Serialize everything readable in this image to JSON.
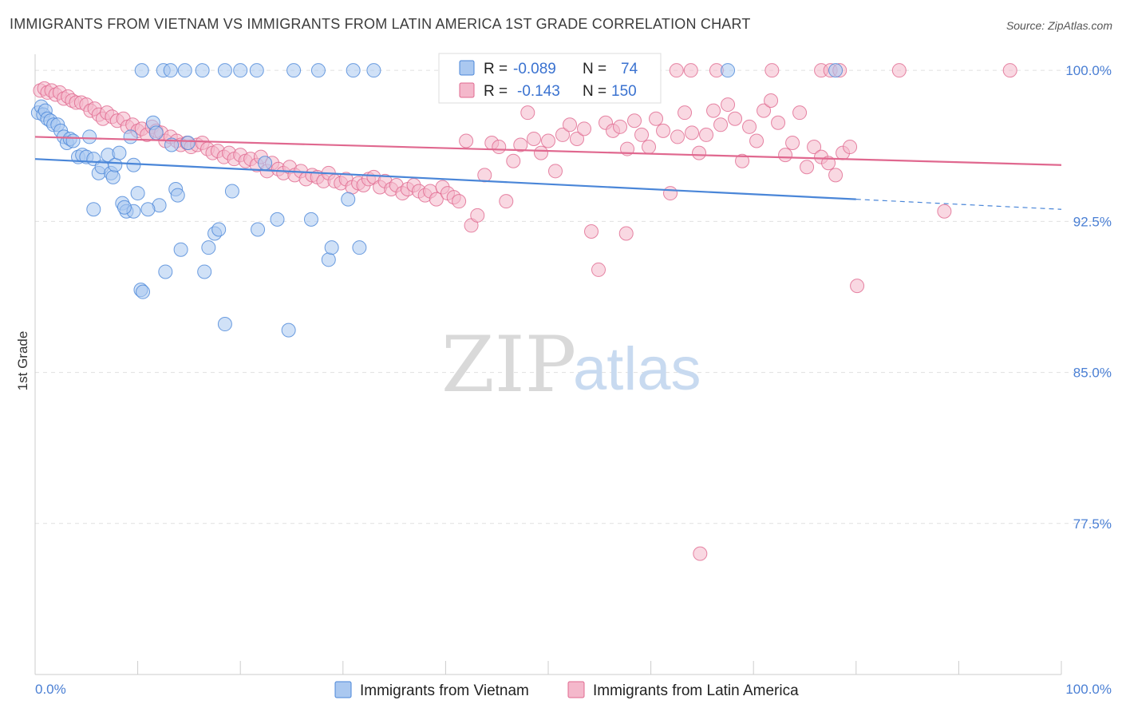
{
  "title": "IMMIGRANTS FROM VIETNAM VS IMMIGRANTS FROM LATIN AMERICA 1ST GRADE CORRELATION CHART",
  "source": "Source: ZipAtlas.com",
  "watermark": {
    "zip": "ZIP",
    "atlas": "atlas"
  },
  "colors": {
    "blue": "#4a86d8",
    "blue_fill": "#aac8f0",
    "pink": "#e0688f",
    "pink_fill": "#f4b8cb",
    "tick_label": "#4a7fd4"
  },
  "legend": {
    "rows": [
      {
        "r_label": "R =",
        "r_value": "-0.089",
        "n_label": "N =",
        "n_value": "74"
      },
      {
        "r_label": "R =",
        "r_value": "-0.143",
        "n_label": "N =",
        "n_value": "150"
      }
    ]
  },
  "bottom_legend": [
    "Immigrants from Vietnam",
    "Immigrants from Latin America"
  ],
  "chart_data": {
    "type": "scatter",
    "title": "IMMIGRANTS FROM VIETNAM VS IMMIGRANTS FROM LATIN AMERICA 1ST GRADE CORRELATION CHART",
    "xlabel": "",
    "ylabel": "1st Grade",
    "xlim": [
      0,
      100
    ],
    "ylim": [
      70,
      100.8
    ],
    "x_tick_labels": [
      "0.0%",
      "100.0%"
    ],
    "y_ticks": [
      100.0,
      92.5,
      85.0,
      77.5
    ],
    "y_tick_labels": [
      "100.0%",
      "92.5%",
      "85.0%",
      "77.5%"
    ],
    "grid": true,
    "series": [
      {
        "name": "Immigrants from Vietnam",
        "r": -0.089,
        "n": 74,
        "trend": {
          "x0": 0,
          "y0": 95.6,
          "x1": 80,
          "y1": 93.6,
          "dash_x1": 100,
          "dash_y1": 93.1
        },
        "points": [
          [
            0.3,
            97.9
          ],
          [
            0.6,
            98.2
          ],
          [
            0.8,
            97.8
          ],
          [
            1.0,
            98.0
          ],
          [
            1.2,
            97.6
          ],
          [
            1.5,
            97.5
          ],
          [
            1.8,
            97.3
          ],
          [
            2.2,
            97.3
          ],
          [
            2.5,
            97.0
          ],
          [
            2.8,
            96.7
          ],
          [
            3.1,
            96.4
          ],
          [
            3.4,
            96.6
          ],
          [
            3.7,
            96.5
          ],
          [
            4.2,
            95.7
          ],
          [
            4.6,
            95.8
          ],
          [
            5.0,
            95.7
          ],
          [
            5.3,
            96.7
          ],
          [
            5.7,
            95.6
          ],
          [
            6.2,
            94.9
          ],
          [
            6.5,
            95.2
          ],
          [
            7.1,
            95.8
          ],
          [
            7.4,
            94.9
          ],
          [
            7.6,
            94.7
          ],
          [
            7.8,
            95.3
          ],
          [
            8.2,
            95.9
          ],
          [
            8.5,
            93.4
          ],
          [
            8.9,
            93.0
          ],
          [
            9.3,
            96.7
          ],
          [
            9.6,
            93.0
          ],
          [
            10.0,
            93.9
          ],
          [
            10.3,
            89.1
          ],
          [
            10.5,
            89.0
          ],
          [
            11.5,
            97.4
          ],
          [
            11.8,
            96.9
          ],
          [
            12.1,
            93.3
          ],
          [
            12.7,
            90.0
          ],
          [
            13.3,
            96.3
          ],
          [
            13.7,
            94.1
          ],
          [
            13.9,
            93.8
          ],
          [
            14.2,
            91.1
          ],
          [
            14.9,
            96.4
          ],
          [
            16.5,
            90.0
          ],
          [
            16.9,
            91.2
          ],
          [
            17.5,
            91.9
          ],
          [
            17.9,
            92.1
          ],
          [
            18.5,
            87.4
          ],
          [
            19.2,
            94.0
          ],
          [
            21.7,
            92.1
          ],
          [
            22.4,
            95.4
          ],
          [
            23.6,
            92.6
          ],
          [
            24.7,
            87.1
          ],
          [
            26.9,
            92.6
          ],
          [
            28.6,
            90.6
          ],
          [
            28.9,
            91.2
          ],
          [
            30.5,
            93.6
          ],
          [
            31.6,
            91.2
          ],
          [
            5.7,
            93.1
          ],
          [
            8.7,
            93.2
          ],
          [
            10.4,
            100.0
          ],
          [
            12.5,
            100.0
          ],
          [
            13.2,
            100.0
          ],
          [
            14.6,
            100.0
          ],
          [
            16.3,
            100.0
          ],
          [
            18.5,
            100.0
          ],
          [
            20.0,
            100.0
          ],
          [
            21.6,
            100.0
          ],
          [
            25.2,
            100.0
          ],
          [
            27.6,
            100.0
          ],
          [
            31.0,
            100.0
          ],
          [
            33.0,
            100.0
          ],
          [
            67.5,
            100.0
          ],
          [
            78.0,
            100.0
          ],
          [
            9.6,
            95.3
          ],
          [
            11.0,
            93.1
          ]
        ]
      },
      {
        "name": "Immigrants from Latin America",
        "r": -0.143,
        "n": 150,
        "trend": {
          "x0": 0,
          "y0": 96.7,
          "x1": 100,
          "y1": 95.3
        },
        "points": [
          [
            0.5,
            99.0
          ],
          [
            0.9,
            99.1
          ],
          [
            1.2,
            98.9
          ],
          [
            1.6,
            99.0
          ],
          [
            2.0,
            98.8
          ],
          [
            2.4,
            98.9
          ],
          [
            2.8,
            98.6
          ],
          [
            3.2,
            98.7
          ],
          [
            3.6,
            98.5
          ],
          [
            4.0,
            98.4
          ],
          [
            4.5,
            98.4
          ],
          [
            5.0,
            98.3
          ],
          [
            5.4,
            98.0
          ],
          [
            5.8,
            98.1
          ],
          [
            6.2,
            97.8
          ],
          [
            6.6,
            97.6
          ],
          [
            7.0,
            97.9
          ],
          [
            7.5,
            97.7
          ],
          [
            8.0,
            97.5
          ],
          [
            8.6,
            97.6
          ],
          [
            9.0,
            97.2
          ],
          [
            9.5,
            97.3
          ],
          [
            10.0,
            97.0
          ],
          [
            10.4,
            97.1
          ],
          [
            10.9,
            96.8
          ],
          [
            11.4,
            97.2
          ],
          [
            11.8,
            97.0
          ],
          [
            12.3,
            96.9
          ],
          [
            12.7,
            96.5
          ],
          [
            13.2,
            96.7
          ],
          [
            13.8,
            96.5
          ],
          [
            14.2,
            96.3
          ],
          [
            14.8,
            96.4
          ],
          [
            15.2,
            96.2
          ],
          [
            15.8,
            96.3
          ],
          [
            16.3,
            96.4
          ],
          [
            16.8,
            96.1
          ],
          [
            17.3,
            95.9
          ],
          [
            17.8,
            96.0
          ],
          [
            18.4,
            95.7
          ],
          [
            18.9,
            95.9
          ],
          [
            19.4,
            95.6
          ],
          [
            20.0,
            95.8
          ],
          [
            20.5,
            95.5
          ],
          [
            21.0,
            95.6
          ],
          [
            21.6,
            95.3
          ],
          [
            22.0,
            95.7
          ],
          [
            22.6,
            95.0
          ],
          [
            23.1,
            95.4
          ],
          [
            23.7,
            95.1
          ],
          [
            24.2,
            94.9
          ],
          [
            24.8,
            95.2
          ],
          [
            25.3,
            94.8
          ],
          [
            25.9,
            95.0
          ],
          [
            26.4,
            94.6
          ],
          [
            27.0,
            94.8
          ],
          [
            27.5,
            94.7
          ],
          [
            28.1,
            94.5
          ],
          [
            28.6,
            94.9
          ],
          [
            29.2,
            94.5
          ],
          [
            29.8,
            94.4
          ],
          [
            30.3,
            94.6
          ],
          [
            30.9,
            94.2
          ],
          [
            31.5,
            94.4
          ],
          [
            32.0,
            94.3
          ],
          [
            32.5,
            94.6
          ],
          [
            33.0,
            94.7
          ],
          [
            33.6,
            94.2
          ],
          [
            34.1,
            94.5
          ],
          [
            34.7,
            94.1
          ],
          [
            35.2,
            94.3
          ],
          [
            35.8,
            93.9
          ],
          [
            36.3,
            94.1
          ],
          [
            36.9,
            94.3
          ],
          [
            37.4,
            94.0
          ],
          [
            38.0,
            93.8
          ],
          [
            38.5,
            94.0
          ],
          [
            39.1,
            93.6
          ],
          [
            39.7,
            94.2
          ],
          [
            40.2,
            93.9
          ],
          [
            40.8,
            93.7
          ],
          [
            41.3,
            93.5
          ],
          [
            42.0,
            96.5
          ],
          [
            42.5,
            92.3
          ],
          [
            43.1,
            92.8
          ],
          [
            43.8,
            94.8
          ],
          [
            44.5,
            96.4
          ],
          [
            45.2,
            96.2
          ],
          [
            45.9,
            93.5
          ],
          [
            46.6,
            95.5
          ],
          [
            47.3,
            96.3
          ],
          [
            48.0,
            97.9
          ],
          [
            48.6,
            96.6
          ],
          [
            49.3,
            95.9
          ],
          [
            50.0,
            96.5
          ],
          [
            50.7,
            95.0
          ],
          [
            51.4,
            96.8
          ],
          [
            52.1,
            97.3
          ],
          [
            52.8,
            96.6
          ],
          [
            53.5,
            97.1
          ],
          [
            54.2,
            92.0
          ],
          [
            54.9,
            90.1
          ],
          [
            55.6,
            97.4
          ],
          [
            56.3,
            97.0
          ],
          [
            57.0,
            97.2
          ],
          [
            57.7,
            96.1
          ],
          [
            58.4,
            97.5
          ],
          [
            59.1,
            96.8
          ],
          [
            59.8,
            96.2
          ],
          [
            60.5,
            97.6
          ],
          [
            61.2,
            97.0
          ],
          [
            61.9,
            93.9
          ],
          [
            62.6,
            96.7
          ],
          [
            63.3,
            97.9
          ],
          [
            64.0,
            96.9
          ],
          [
            64.7,
            95.9
          ],
          [
            65.4,
            96.8
          ],
          [
            66.1,
            98.0
          ],
          [
            66.8,
            97.3
          ],
          [
            67.5,
            98.3
          ],
          [
            68.2,
            97.6
          ],
          [
            68.9,
            95.5
          ],
          [
            69.6,
            97.2
          ],
          [
            70.3,
            96.5
          ],
          [
            71.0,
            98.0
          ],
          [
            71.7,
            98.5
          ],
          [
            72.4,
            97.4
          ],
          [
            73.1,
            95.8
          ],
          [
            73.8,
            96.4
          ],
          [
            74.5,
            97.9
          ],
          [
            75.2,
            95.2
          ],
          [
            75.9,
            96.2
          ],
          [
            76.6,
            95.7
          ],
          [
            77.3,
            95.4
          ],
          [
            78.0,
            94.8
          ],
          [
            78.7,
            95.9
          ],
          [
            79.4,
            96.2
          ],
          [
            80.1,
            89.3
          ],
          [
            88.6,
            93.0
          ],
          [
            64.8,
            76.0
          ],
          [
            62.5,
            100.0
          ],
          [
            63.9,
            100.0
          ],
          [
            66.4,
            100.0
          ],
          [
            71.8,
            100.0
          ],
          [
            76.6,
            100.0
          ],
          [
            77.5,
            100.0
          ],
          [
            78.4,
            100.0
          ],
          [
            84.2,
            100.0
          ],
          [
            95.0,
            100.0
          ],
          [
            57.6,
            91.9
          ]
        ]
      }
    ]
  }
}
